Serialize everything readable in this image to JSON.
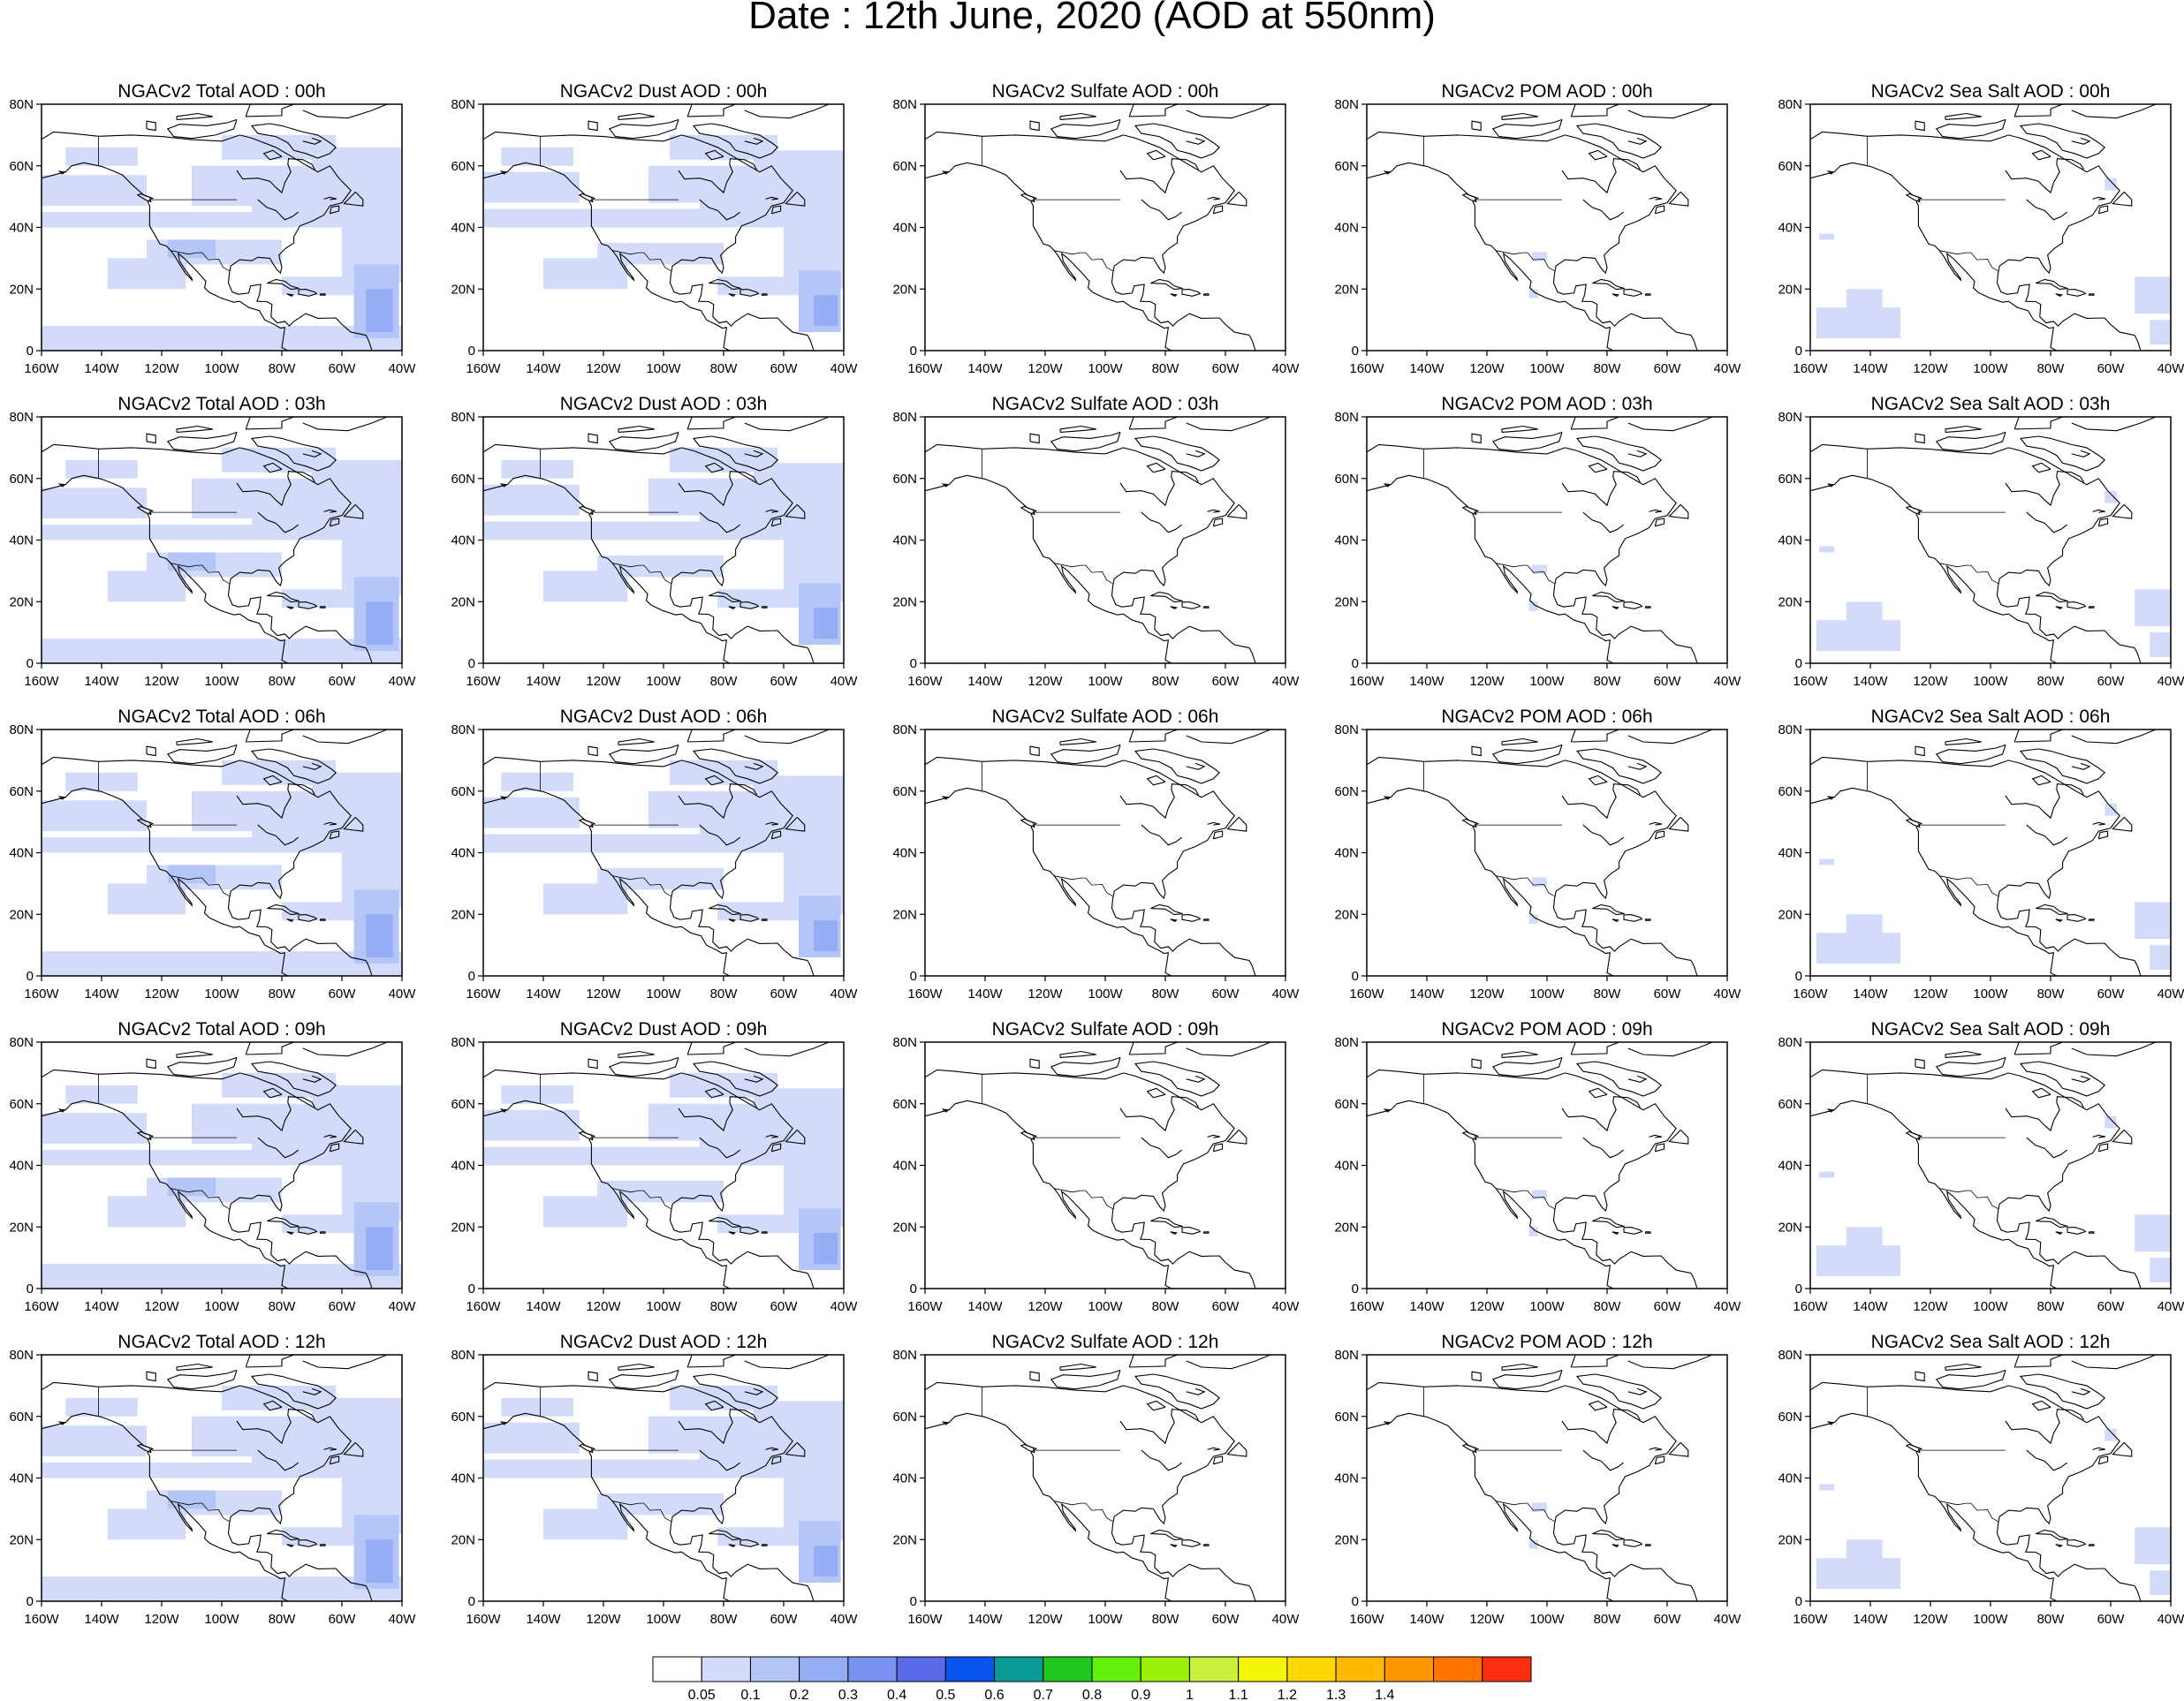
{
  "figure": {
    "title": "Date : 12th June, 2020 (AOD at 550nm)"
  },
  "panels": [
    [
      "NGACv2 Total AOD : 00h",
      "NGACv2 Dust AOD : 00h",
      "NGACv2 Sulfate AOD : 00h",
      "NGACv2 POM AOD : 00h",
      "NGACv2 Sea Salt AOD : 00h"
    ],
    [
      "NGACv2 Total AOD : 03h",
      "NGACv2 Dust AOD : 03h",
      "NGACv2 Sulfate AOD : 03h",
      "NGACv2 POM AOD : 03h",
      "NGACv2 Sea Salt AOD : 03h"
    ],
    [
      "NGACv2 Total AOD : 06h",
      "NGACv2 Dust AOD : 06h",
      "NGACv2 Sulfate AOD : 06h",
      "NGACv2 POM AOD : 06h",
      "NGACv2 Sea Salt AOD : 06h"
    ],
    [
      "NGACv2 Total AOD : 09h",
      "NGACv2 Dust AOD : 09h",
      "NGACv2 Sulfate AOD : 09h",
      "NGACv2 POM AOD : 09h",
      "NGACv2 Sea Salt  AOD : 09h"
    ],
    [
      "NGACv2 Total AOD  : 12h",
      "NGACv2 Dust AOD : 12h",
      "NGACv2 Sulfate AOD : 12h",
      "NGACv2 POM  AOD : 12h",
      "NGACv2 Sea Salt  AOD : 12h"
    ]
  ],
  "map": {
    "lon_range": [
      -160,
      -40
    ],
    "lat_range": [
      0,
      80
    ],
    "lon_ticks": [
      "160W",
      "140W",
      "120W",
      "100W",
      "80W",
      "60W",
      "40W"
    ],
    "lat_ticks": [
      "0",
      "20N",
      "40N",
      "60N",
      "80N"
    ]
  },
  "colorbar": {
    "colors": [
      "#ffffff",
      "#d2dcfa",
      "#b4c6f8",
      "#95adf5",
      "#7a92f0",
      "#5a6bea",
      "#0a55f0",
      "#0a9a96",
      "#1ec81e",
      "#64f00a",
      "#9bf00a",
      "#c8f03c",
      "#f5f50a",
      "#ffd700",
      "#fdb900",
      "#fd9600",
      "#ff7300",
      "#ff2d0f"
    ],
    "labels": [
      "0.05",
      "0.1",
      "0.2",
      "0.3",
      "0.4",
      "0.5",
      "0.6",
      "0.7",
      "0.8",
      "0.9",
      "1",
      "1.1",
      "1.2",
      "1.3",
      "1.4"
    ]
  },
  "chart_data": {
    "type": "heatmap",
    "title": "Date : 12th June, 2020 (AOD at 550nm)",
    "variable": "Aerosol optical depth at 550nm",
    "domain": {
      "lon": [
        -160,
        -40
      ],
      "lat": [
        0,
        80
      ]
    },
    "rows_forecast_hours": [
      "00h",
      "03h",
      "06h",
      "09h",
      "12h"
    ],
    "columns_species": [
      "Total",
      "Dust",
      "Sulfate",
      "POM",
      "Sea Salt"
    ],
    "approx_max_aod": {
      "Total": [
        0.3,
        0.3,
        0.3,
        0.3,
        0.3
      ],
      "Dust": [
        0.3,
        0.3,
        0.3,
        0.3,
        0.3
      ],
      "Sulfate": [
        0.05,
        0.05,
        0.05,
        0.05,
        0.05
      ],
      "POM": [
        0.1,
        0.1,
        0.1,
        0.1,
        0.1
      ],
      "Sea Salt": [
        0.1,
        0.1,
        0.1,
        0.1,
        0.1
      ]
    },
    "colorbar_levels": [
      0.05,
      0.1,
      0.2,
      0.3,
      0.4,
      0.5,
      0.6,
      0.7,
      0.8,
      0.9,
      1,
      1.1,
      1.2,
      1.3,
      1.4
    ]
  }
}
